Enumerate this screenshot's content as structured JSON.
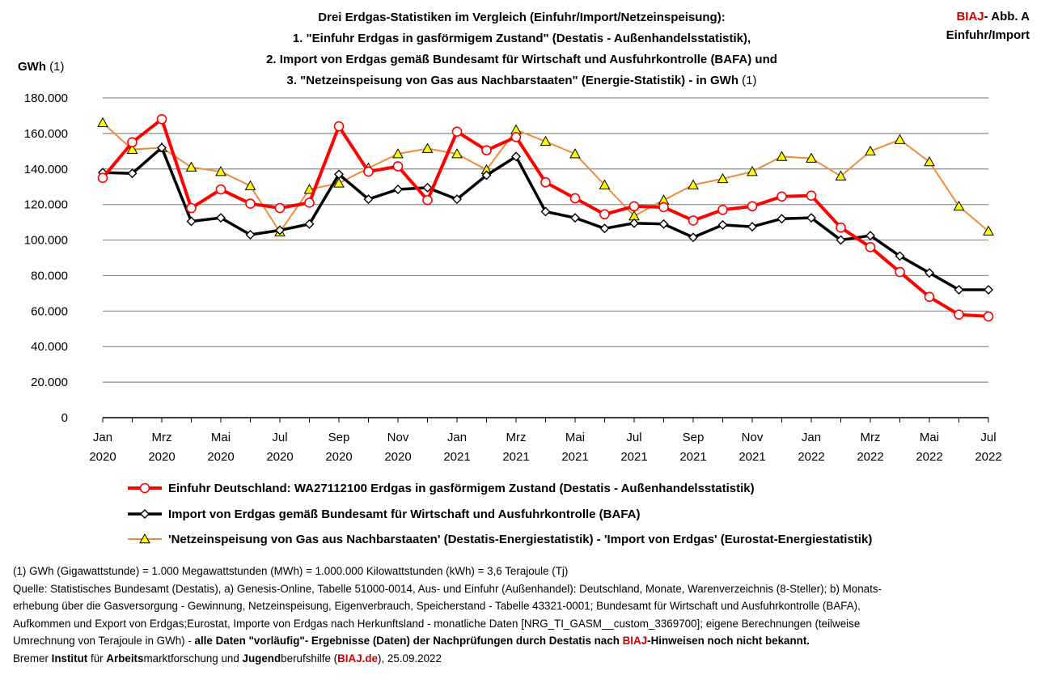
{
  "header": {
    "title_lines": [
      "Drei Erdgas-Statistiken im Vergleich (Einfuhr/Import/Netzeinspeisung):",
      "1. \"Einfuhr Erdgas in gasförmigem Zustand\" (Destatis - Außenhandelsstatistik),",
      "2.  Import von Erdgas gemäß Bundesamt für Wirtschaft und Ausfuhrkontrolle  (BAFA) und",
      "3. \"Netzeinspeisung von Gas aus Nachbarstaaten\" (Energie-Statistik) - in GWh"
    ],
    "title_suffix": " (1)",
    "badge_brand": "BIAJ",
    "badge_rest": "- Abb. A",
    "badge_line2": "Einfuhr/Import"
  },
  "axis": {
    "ylabel_bold": "GWh",
    "ylabel_rest": " (1)"
  },
  "chart_data": {
    "type": "line",
    "ylim": [
      0,
      180000
    ],
    "yticks": [
      0,
      20000,
      40000,
      60000,
      80000,
      100000,
      120000,
      140000,
      160000,
      180000
    ],
    "ytick_labels": [
      "0",
      "20.000",
      "40.000",
      "60.000",
      "80.000",
      "100.000",
      "120.000",
      "140.000",
      "160.000",
      "180.000"
    ],
    "grid": "horizontal",
    "x": [
      "2020-01",
      "2020-02",
      "2020-03",
      "2020-04",
      "2020-05",
      "2020-06",
      "2020-07",
      "2020-08",
      "2020-09",
      "2020-10",
      "2020-11",
      "2020-12",
      "2021-01",
      "2021-02",
      "2021-03",
      "2021-04",
      "2021-05",
      "2021-06",
      "2021-07",
      "2021-08",
      "2021-09",
      "2021-10",
      "2021-11",
      "2021-12",
      "2022-01",
      "2022-02",
      "2022-03",
      "2022-04",
      "2022-05",
      "2022-06",
      "2022-07"
    ],
    "xtick_labels": [
      [
        "Jan",
        "2020"
      ],
      [
        "",
        ""
      ],
      [
        "Mrz",
        "2020"
      ],
      [
        "",
        ""
      ],
      [
        "Mai",
        "2020"
      ],
      [
        "",
        ""
      ],
      [
        "Jul",
        "2020"
      ],
      [
        "",
        ""
      ],
      [
        "Sep",
        "2020"
      ],
      [
        "",
        ""
      ],
      [
        "Nov",
        "2020"
      ],
      [
        "",
        ""
      ],
      [
        "Jan",
        "2021"
      ],
      [
        "",
        ""
      ],
      [
        "Mrz",
        "2021"
      ],
      [
        "",
        ""
      ],
      [
        "Mai",
        "2021"
      ],
      [
        "",
        ""
      ],
      [
        "Jul",
        "2021"
      ],
      [
        "",
        ""
      ],
      [
        "Sep",
        "2021"
      ],
      [
        "",
        ""
      ],
      [
        "Nov",
        "2021"
      ],
      [
        "",
        ""
      ],
      [
        "Jan",
        "2022"
      ],
      [
        "",
        ""
      ],
      [
        "Mrz",
        "2022"
      ],
      [
        "",
        ""
      ],
      [
        "Mai",
        "2022"
      ],
      [
        "",
        ""
      ],
      [
        "Jul",
        "2022"
      ]
    ],
    "legend_placement": "bottom",
    "series": [
      {
        "name": "Einfuhr Deutschland:  WA27112100 Erdgas in gasförmigem Zustand (Destatis - Außenhandelsstatistik)",
        "color": "#ff0000",
        "marker": "circle",
        "values": [
          135000,
          155000,
          168000,
          118000,
          128500,
          120500,
          118000,
          121000,
          164000,
          138500,
          141500,
          122500,
          161000,
          150500,
          158000,
          132500,
          123500,
          114500,
          119000,
          118500,
          111000,
          117000,
          119000,
          124500,
          125000,
          107000,
          96000,
          82000,
          68000,
          58000,
          57000
        ]
      },
      {
        "name": "Import von Erdgas gemäß Bundesamt für Wirtschaft und Ausfuhrkontrolle (BAFA)",
        "color": "#000000",
        "marker": "diamond",
        "values": [
          138000,
          137500,
          152000,
          110500,
          112500,
          103000,
          105500,
          109000,
          137000,
          123000,
          128500,
          129500,
          123000,
          136500,
          147000,
          116000,
          112500,
          106500,
          109500,
          109000,
          101500,
          108500,
          107500,
          112000,
          112500,
          100000,
          102500,
          91000,
          81500,
          72000,
          72000
        ]
      },
      {
        "name": "'Netzeinspeisung von Gas aus Nachbarstaaten' (Destatis-Energiestatistik) - 'Import von Erdgas' (Eurostat-Energiestatistik)",
        "color": "#ed8c3a",
        "marker": "triangle",
        "values": [
          166000,
          151000,
          152000,
          141000,
          138500,
          130500,
          104500,
          128500,
          132000,
          140500,
          148500,
          151500,
          148500,
          139500,
          162000,
          155500,
          148500,
          131000,
          113500,
          122500,
          131000,
          134500,
          138500,
          147000,
          146000,
          136000,
          150000,
          156500,
          144000,
          119000,
          105000
        ]
      }
    ]
  },
  "notes": {
    "line1": "(1) GWh (Gigawattstunde) = 1.000 Megawattstunden (MWh)  = 1.000.000 Kilowattstunden (kWh) = 3,6 Terajoule (Tj)",
    "line2": "Quelle: Statistisches Bundesamt (Destatis), a) Genesis-Online, Tabelle 51000-0014, Aus- und Einfuhr (Außenhandel): Deutschland, Monate, Warenverzeichnis (8-Steller); b) Monats-",
    "line3": "erhebung über die Gasversorgung - Gewinnung, Netzeinspeisung, Eigenverbrauch, Speicherstand - Tabelle 43321-0001; Bundesamt für Wirtschaft und Ausfuhrkontrolle (BAFA),",
    "line4": "Aufkommen und Export von Erdgas;Eurostat, Importe von Erdgas nach Herkunftsland - monatliche Daten [NRG_TI_GASM__custom_3369700]; eigene Berechnungen (teilweise",
    "line5_a": "Umrechnung von Terajoule in GWh) - ",
    "line5_b": "alle Daten \"vorläufig\"- Ergebnisse (Daten) der Nachprüfungen durch Destatis nach ",
    "line5_brand": "BIAJ",
    "line5_c": "-Hinweisen noch nicht bekannt.",
    "line6_w1": "Bremer ",
    "line6_w2": "Institut",
    "line6_w3": " für ",
    "line6_w4": "Arbeits",
    "line6_w5": "marktforschung und ",
    "line6_w6": "Jugend",
    "line6_w7": "berufshilfe (",
    "line6_brand": "BIAJ.de",
    "line6_w8": "), 25.09.2022"
  }
}
